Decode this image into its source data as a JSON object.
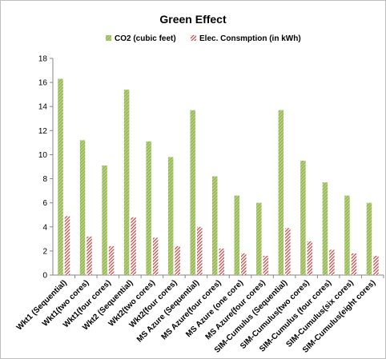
{
  "chart_data": {
    "type": "bar",
    "title": "Green Effect",
    "xlabel": "",
    "ylabel": "",
    "ylim": [
      0,
      18
    ],
    "yticks": [
      0,
      2,
      4,
      6,
      8,
      10,
      12,
      14,
      16,
      18
    ],
    "grid": false,
    "legend_position": "top",
    "categories": [
      "Wkt1 (Sequential)",
      "Wkt1(two cores)",
      "Wkt1(four cores)",
      "Wkt2 (Sequential)",
      "Wkt2(two cores)",
      "Wkt2(four cores)",
      "MS Azure (Sequential)",
      "MS Azure(four cores)",
      "MS Azure (one core)",
      "MS Azure(four cores)",
      "SIM-Cumulus (Sequential)",
      "SIM-Cumulus(two cores)",
      "SIM-Cumulus (four cores)",
      "SIM-Cumulus(six cores)",
      "SIM-Cumulus(eight cores)"
    ],
    "series": [
      {
        "name": "CO2 (cubic feet)",
        "color": "#9bbb59",
        "values": [
          16.3,
          11.2,
          9.1,
          15.4,
          11.1,
          9.8,
          13.7,
          8.2,
          6.6,
          6.0,
          13.7,
          9.5,
          7.7,
          6.6,
          6.0
        ]
      },
      {
        "name": "Elec. Consmption (in kWh)",
        "color": "#c0504d",
        "values": [
          4.9,
          3.2,
          2.4,
          4.8,
          3.1,
          2.4,
          4.0,
          2.2,
          1.8,
          1.6,
          3.9,
          2.8,
          2.1,
          1.8,
          1.6
        ]
      }
    ]
  }
}
